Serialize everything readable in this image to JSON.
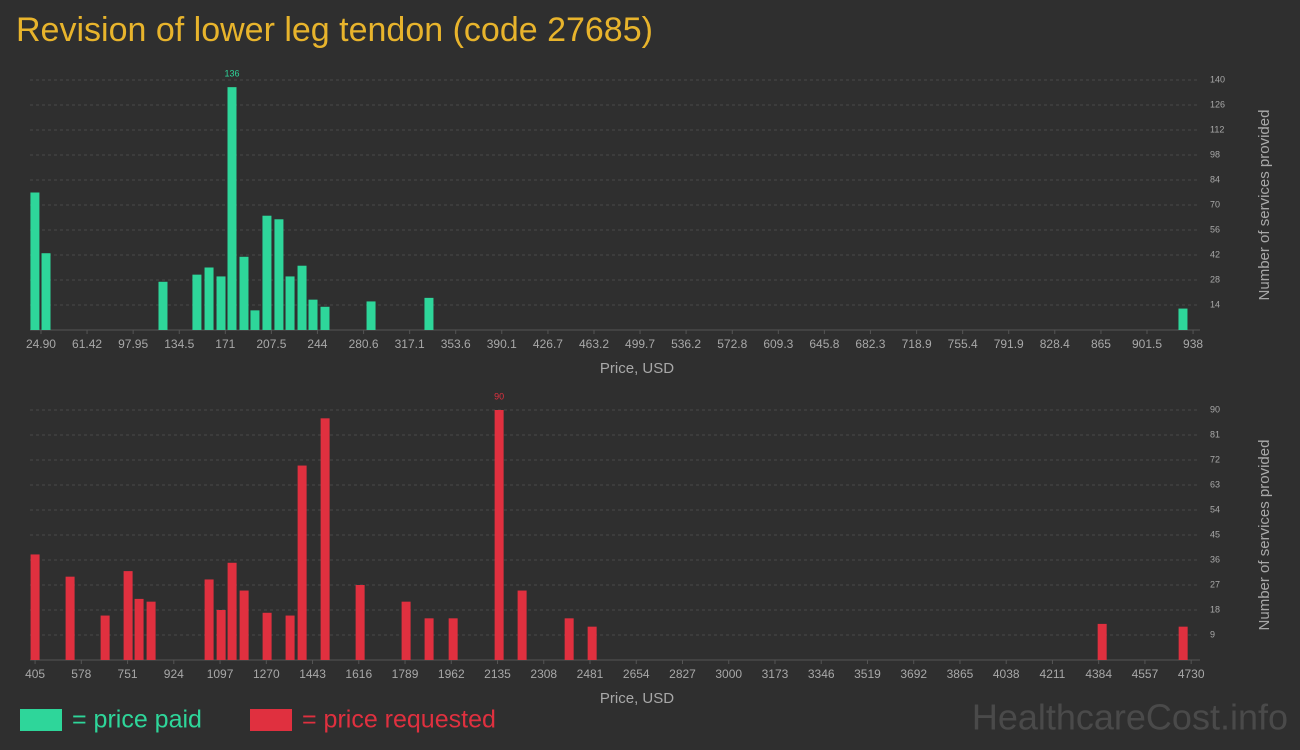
{
  "chart_data": [
    {
      "type": "bar",
      "title": "Revision of lower leg tendon (code 27685)",
      "x": [
        20.1,
        28.9,
        121.6,
        148.5,
        158.1,
        167.6,
        176.3,
        185.8,
        194.5,
        204.0,
        213.5,
        222.3,
        231.8,
        240.5,
        250.0,
        286.5,
        332.4,
        930.0
      ],
      "series": [
        {
          "name": "= price paid",
          "color": "#2ed69a",
          "values": [
            77,
            43,
            27,
            31,
            35,
            30,
            136,
            41,
            11,
            64,
            62,
            30,
            36,
            17,
            13,
            16,
            18,
            12
          ]
        }
      ],
      "xlim": [
        16.2,
        943.5
      ],
      "xticks": [
        {
          "value": 24.9,
          "label": "24.90"
        },
        61.42,
        97.95,
        134.5,
        171,
        207.5,
        244,
        280.6,
        317.1,
        353.6,
        390.1,
        426.7,
        463.2,
        499.7,
        536.2,
        572.8,
        609.3,
        645.8,
        682.3,
        718.9,
        755.4,
        791.9,
        828.4,
        865,
        901.5,
        938
      ],
      "ylim": [
        0,
        140
      ],
      "yticks": [
        14,
        28,
        42,
        56,
        70,
        84,
        98,
        112,
        126,
        140
      ],
      "xlabel": "Price, USD",
      "ylabel": "Number of services provided",
      "grid": true
    },
    {
      "type": "bar",
      "x": [
        405,
        536,
        667,
        753,
        794,
        839,
        1056,
        1101,
        1142,
        1187,
        1273,
        1359,
        1404,
        1490,
        1621,
        1793,
        1879,
        1969,
        2141,
        2227,
        2403,
        2489,
        4397,
        4700
      ],
      "series": [
        {
          "name": "= price requested",
          "color": "#e0303f",
          "values": [
            38,
            30,
            16,
            32,
            22,
            21,
            29,
            18,
            35,
            25,
            17,
            16,
            70,
            87,
            27,
            21,
            15,
            15,
            90,
            25,
            15,
            12,
            13,
            12
          ]
        }
      ],
      "xlim": [
        386,
        4763
      ],
      "xticks": [
        405,
        578,
        751,
        924,
        1097,
        1270,
        1443,
        1616,
        1789,
        1962,
        2135,
        2308,
        2481,
        2654,
        2827,
        3000,
        3173,
        3346,
        3519,
        3692,
        3865,
        4038,
        4211,
        4384,
        4557,
        4730
      ],
      "ylim": [
        0,
        90
      ],
      "yticks": [
        9,
        18,
        27,
        36,
        45,
        54,
        63,
        72,
        81,
        90
      ],
      "xlabel": "Price, USD",
      "ylabel": "Number of services provided",
      "grid": true
    }
  ],
  "watermark": "HealthcareCost.info"
}
